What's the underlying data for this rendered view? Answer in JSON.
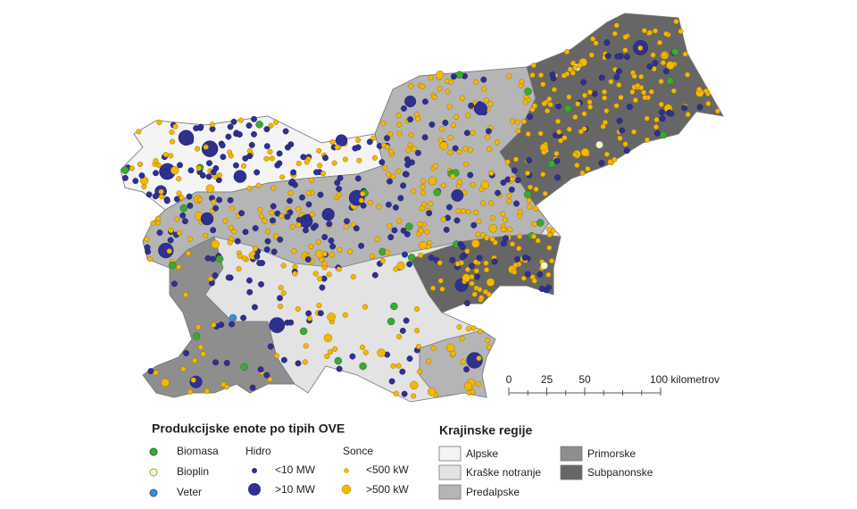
{
  "legend_units": {
    "title": "Produkcijske enote po tipih OVE",
    "groups": [
      {
        "items": [
          "Biomasa",
          "Bioplin",
          "Veter"
        ]
      },
      {
        "title": "Hidro",
        "items": [
          "<10 MW",
          ">10 MW"
        ]
      },
      {
        "title": "Sonce",
        "items": [
          "<500 kW",
          ">500 kW"
        ]
      }
    ]
  },
  "legend_regions": {
    "title": "Krajinske regije",
    "items": [
      "Alpske",
      "Kraške notranje",
      "Predalpske",
      "Primorske",
      "Subpanonske"
    ]
  },
  "scale_bar": {
    "ticks": [
      0,
      25,
      50,
      {
        "value": 100,
        "label": "100 kilometrov"
      }
    ]
  }
}
